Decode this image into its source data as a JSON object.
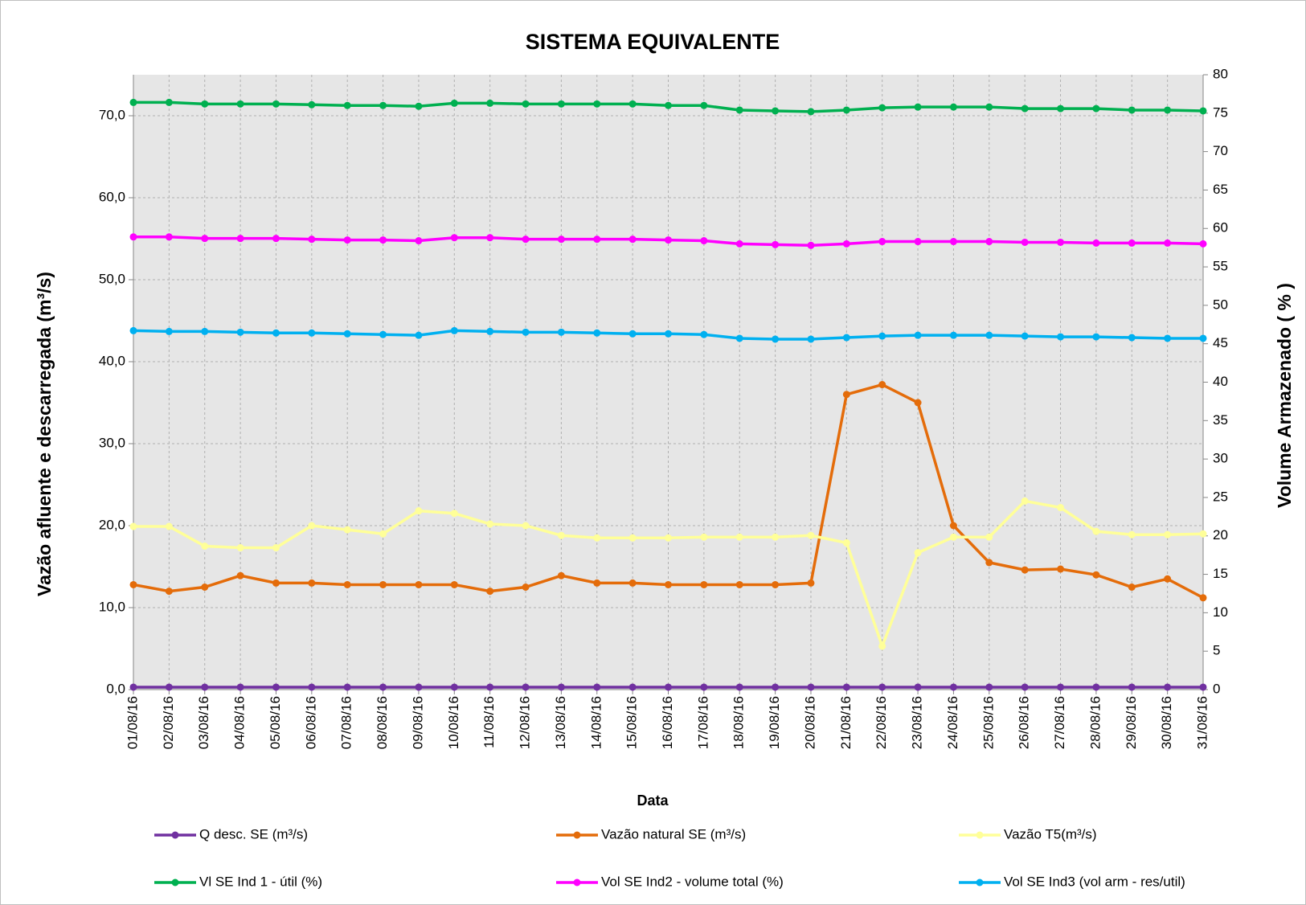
{
  "chart_data": {
    "type": "line",
    "title": "SISTEMA EQUIVALENTE",
    "x_label": "Data",
    "y_label": "Vazão  afluente e descarregada (m³/s)",
    "y2_label": "Volume Armazenado ( % )",
    "categories": [
      "01/08/16",
      "02/08/16",
      "03/08/16",
      "04/08/16",
      "05/08/16",
      "06/08/16",
      "07/08/16",
      "08/08/16",
      "09/08/16",
      "10/08/16",
      "11/08/16",
      "12/08/16",
      "13/08/16",
      "14/08/16",
      "15/08/16",
      "16/08/16",
      "17/08/16",
      "18/08/16",
      "19/08/16",
      "20/08/16",
      "21/08/16",
      "22/08/16",
      "23/08/16",
      "24/08/16",
      "25/08/16",
      "26/08/16",
      "27/08/16",
      "28/08/16",
      "29/08/16",
      "30/08/16",
      "31/08/16"
    ],
    "ylim": [
      0,
      75
    ],
    "yticks": [
      {
        "value": 0,
        "label": "0,0"
      },
      {
        "value": 10,
        "label": "10,0"
      },
      {
        "value": 20,
        "label": "20,0"
      },
      {
        "value": 30,
        "label": "30,0"
      },
      {
        "value": 40,
        "label": "40,0"
      },
      {
        "value": 50,
        "label": "50,0"
      },
      {
        "value": 60,
        "label": "60,0"
      },
      {
        "value": 70,
        "label": "70,0"
      }
    ],
    "y2lim": [
      0,
      80
    ],
    "y2ticks": [
      0,
      5,
      10,
      15,
      20,
      25,
      30,
      35,
      40,
      45,
      50,
      55,
      60,
      65,
      70,
      75,
      80
    ],
    "grid": true,
    "series": [
      {
        "name": "Q desc. SE (m³/s)",
        "color": "#7030a0",
        "axis": "y",
        "values": [
          0.3,
          0.3,
          0.3,
          0.3,
          0.3,
          0.3,
          0.3,
          0.3,
          0.3,
          0.3,
          0.3,
          0.3,
          0.3,
          0.3,
          0.3,
          0.3,
          0.3,
          0.3,
          0.3,
          0.3,
          0.3,
          0.3,
          0.3,
          0.3,
          0.3,
          0.3,
          0.3,
          0.3,
          0.3,
          0.3,
          0.3
        ]
      },
      {
        "name": "Vazão natural SE (m³/s)",
        "color": "#e46c0a",
        "axis": "y",
        "values": [
          12.8,
          12.0,
          12.5,
          13.9,
          13.0,
          13.0,
          12.8,
          12.8,
          12.8,
          12.8,
          12.0,
          12.5,
          13.9,
          13.0,
          13.0,
          12.8,
          12.8,
          12.8,
          12.8,
          13.0,
          36.0,
          37.2,
          35.0,
          20.0,
          15.5,
          14.6,
          14.7,
          14.0,
          12.5,
          13.5,
          11.2
        ]
      },
      {
        "name": "Vazão T5(m³/s)",
        "color": "#ffff99",
        "axis": "y",
        "values": [
          19.9,
          19.9,
          17.5,
          17.3,
          17.3,
          20.0,
          19.5,
          19.0,
          21.8,
          21.5,
          20.2,
          20.0,
          18.8,
          18.5,
          18.5,
          18.5,
          18.6,
          18.6,
          18.6,
          18.8,
          17.9,
          5.3,
          16.7,
          18.6,
          18.6,
          23.0,
          22.2,
          19.3,
          18.9,
          18.9,
          19.0
        ]
      },
      {
        "name": "Vl SE Ind 1 - útil (%)",
        "color": "#00b050",
        "axis": "y2",
        "values": [
          76.4,
          76.4,
          76.2,
          76.2,
          76.2,
          76.1,
          76.0,
          76.0,
          75.9,
          76.3,
          76.3,
          76.2,
          76.2,
          76.2,
          76.2,
          76.0,
          76.0,
          75.4,
          75.3,
          75.2,
          75.4,
          75.7,
          75.8,
          75.8,
          75.8,
          75.6,
          75.6,
          75.6,
          75.4,
          75.4,
          75.3
        ]
      },
      {
        "name": "Vol SE Ind2 - volume total (%)",
        "color": "#ff00ff",
        "axis": "y2",
        "values": [
          58.9,
          58.9,
          58.7,
          58.7,
          58.7,
          58.6,
          58.5,
          58.5,
          58.4,
          58.8,
          58.8,
          58.6,
          58.6,
          58.6,
          58.6,
          58.5,
          58.4,
          58.0,
          57.9,
          57.8,
          58.0,
          58.3,
          58.3,
          58.3,
          58.3,
          58.2,
          58.2,
          58.1,
          58.1,
          58.1,
          58.0
        ]
      },
      {
        "name": "Vol SE Ind3 (vol arm - res/util)",
        "color": "#00b0f0",
        "axis": "y2",
        "values": [
          46.7,
          46.6,
          46.6,
          46.5,
          46.4,
          46.4,
          46.3,
          46.2,
          46.1,
          46.7,
          46.6,
          46.5,
          46.5,
          46.4,
          46.3,
          46.3,
          46.2,
          45.7,
          45.6,
          45.6,
          45.8,
          46.0,
          46.1,
          46.1,
          46.1,
          46.0,
          45.9,
          45.9,
          45.8,
          45.7,
          45.7
        ]
      }
    ]
  }
}
